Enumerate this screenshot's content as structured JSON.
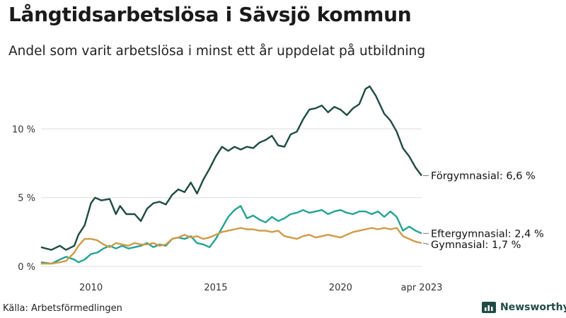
{
  "header": {
    "title": "Långtidsarbetslösa i Sävsjö kommun",
    "subtitle": "Andel som varit arbetslösa i minst ett år uppdelat på utbildning"
  },
  "footer": {
    "source": "Källa: Arbetsförmedlingen",
    "brand": "Newsworthy"
  },
  "colors": {
    "forgymnasial": "#1d4a44",
    "eftergymnasial": "#23a392",
    "gymnasial": "#cf9a45",
    "grid": "#dddddd",
    "brand": "#1f4a45"
  },
  "chart_data": {
    "type": "line",
    "xlim": [
      "2008-01",
      "2023-04"
    ],
    "ylim": [
      0,
      13
    ],
    "y_ticks": [
      0,
      5,
      10
    ],
    "y_tick_labels": [
      "0 %",
      "5 %",
      "10 %"
    ],
    "x_ticks": [
      "2010-01",
      "2015-01",
      "2020-01",
      "2023-04"
    ],
    "x_tick_labels": [
      "2010",
      "2015",
      "2020",
      "apr 2023"
    ],
    "grid": true,
    "legend": "end-labels",
    "series": [
      {
        "name": "Förgymnasial",
        "end_label": "Förgymnasial: 6,6 %",
        "color": "#1d4a44",
        "points": [
          [
            "2008-01",
            1.4
          ],
          [
            "2008-06",
            1.2
          ],
          [
            "2008-10",
            1.5
          ],
          [
            "2009-01",
            1.2
          ],
          [
            "2009-05",
            1.5
          ],
          [
            "2009-07",
            2.3
          ],
          [
            "2009-10",
            3.0
          ],
          [
            "2010-01",
            4.6
          ],
          [
            "2010-03",
            5.0
          ],
          [
            "2010-06",
            4.8
          ],
          [
            "2010-10",
            4.9
          ],
          [
            "2011-01",
            3.8
          ],
          [
            "2011-03",
            4.4
          ],
          [
            "2011-06",
            3.8
          ],
          [
            "2011-10",
            3.8
          ],
          [
            "2012-01",
            3.3
          ],
          [
            "2012-04",
            4.2
          ],
          [
            "2012-07",
            4.6
          ],
          [
            "2012-10",
            4.7
          ],
          [
            "2013-01",
            4.5
          ],
          [
            "2013-04",
            5.2
          ],
          [
            "2013-07",
            5.6
          ],
          [
            "2013-10",
            5.4
          ],
          [
            "2014-01",
            6.1
          ],
          [
            "2014-04",
            5.3
          ],
          [
            "2014-07",
            6.3
          ],
          [
            "2014-10",
            7.1
          ],
          [
            "2015-01",
            8.0
          ],
          [
            "2015-04",
            8.7
          ],
          [
            "2015-07",
            8.4
          ],
          [
            "2015-10",
            8.7
          ],
          [
            "2016-01",
            8.5
          ],
          [
            "2016-04",
            8.7
          ],
          [
            "2016-07",
            8.6
          ],
          [
            "2016-10",
            9.0
          ],
          [
            "2017-01",
            9.2
          ],
          [
            "2017-04",
            9.5
          ],
          [
            "2017-07",
            8.8
          ],
          [
            "2017-10",
            8.7
          ],
          [
            "2018-01",
            9.6
          ],
          [
            "2018-04",
            9.8
          ],
          [
            "2018-07",
            10.7
          ],
          [
            "2018-10",
            11.4
          ],
          [
            "2019-01",
            11.5
          ],
          [
            "2019-04",
            11.7
          ],
          [
            "2019-07",
            11.2
          ],
          [
            "2019-10",
            11.6
          ],
          [
            "2020-01",
            11.4
          ],
          [
            "2020-04",
            11.0
          ],
          [
            "2020-07",
            11.5
          ],
          [
            "2020-10",
            11.8
          ],
          [
            "2021-01",
            12.9
          ],
          [
            "2021-03",
            13.1
          ],
          [
            "2021-06",
            12.4
          ],
          [
            "2021-10",
            11.1
          ],
          [
            "2022-01",
            10.6
          ],
          [
            "2022-04",
            9.8
          ],
          [
            "2022-07",
            8.6
          ],
          [
            "2022-10",
            8.0
          ],
          [
            "2023-01",
            7.2
          ],
          [
            "2023-04",
            6.6
          ]
        ]
      },
      {
        "name": "Eftergymnasial",
        "end_label": "Eftergymnasial: 2,4 %",
        "color": "#23a392",
        "points": [
          [
            "2008-01",
            0.3
          ],
          [
            "2008-06",
            0.2
          ],
          [
            "2008-10",
            0.5
          ],
          [
            "2009-01",
            0.7
          ],
          [
            "2009-05",
            0.5
          ],
          [
            "2009-07",
            0.3
          ],
          [
            "2009-10",
            0.5
          ],
          [
            "2010-01",
            0.9
          ],
          [
            "2010-04",
            1.0
          ],
          [
            "2010-07",
            1.3
          ],
          [
            "2010-10",
            1.5
          ],
          [
            "2011-01",
            1.3
          ],
          [
            "2011-04",
            1.5
          ],
          [
            "2011-07",
            1.3
          ],
          [
            "2011-10",
            1.4
          ],
          [
            "2012-01",
            1.5
          ],
          [
            "2012-04",
            1.7
          ],
          [
            "2012-07",
            1.4
          ],
          [
            "2012-10",
            1.6
          ],
          [
            "2013-01",
            1.5
          ],
          [
            "2013-04",
            2.0
          ],
          [
            "2013-07",
            2.1
          ],
          [
            "2013-10",
            2.0
          ],
          [
            "2014-01",
            2.2
          ],
          [
            "2014-04",
            1.7
          ],
          [
            "2014-07",
            1.6
          ],
          [
            "2014-10",
            1.4
          ],
          [
            "2015-01",
            2.0
          ],
          [
            "2015-04",
            2.8
          ],
          [
            "2015-07",
            3.6
          ],
          [
            "2015-10",
            4.1
          ],
          [
            "2016-01",
            4.4
          ],
          [
            "2016-04",
            3.5
          ],
          [
            "2016-07",
            3.7
          ],
          [
            "2016-10",
            3.4
          ],
          [
            "2017-01",
            3.2
          ],
          [
            "2017-04",
            3.6
          ],
          [
            "2017-07",
            3.3
          ],
          [
            "2017-10",
            3.5
          ],
          [
            "2018-01",
            3.8
          ],
          [
            "2018-04",
            3.9
          ],
          [
            "2018-07",
            4.1
          ],
          [
            "2018-10",
            3.9
          ],
          [
            "2019-01",
            4.0
          ],
          [
            "2019-04",
            4.1
          ],
          [
            "2019-07",
            3.8
          ],
          [
            "2019-10",
            4.0
          ],
          [
            "2020-01",
            4.1
          ],
          [
            "2020-04",
            3.9
          ],
          [
            "2020-07",
            3.8
          ],
          [
            "2020-10",
            4.0
          ],
          [
            "2021-01",
            4.0
          ],
          [
            "2021-04",
            3.8
          ],
          [
            "2021-07",
            4.0
          ],
          [
            "2021-10",
            3.6
          ],
          [
            "2022-01",
            4.0
          ],
          [
            "2022-04",
            3.6
          ],
          [
            "2022-07",
            2.6
          ],
          [
            "2022-10",
            2.9
          ],
          [
            "2023-01",
            2.6
          ],
          [
            "2023-04",
            2.4
          ]
        ]
      },
      {
        "name": "Gymnasial",
        "end_label": "Gymnasial: 1,7 %",
        "color": "#cf9a45",
        "points": [
          [
            "2008-01",
            0.2
          ],
          [
            "2008-06",
            0.2
          ],
          [
            "2008-10",
            0.3
          ],
          [
            "2009-01",
            0.4
          ],
          [
            "2009-05",
            1.0
          ],
          [
            "2009-07",
            1.5
          ],
          [
            "2009-10",
            2.0
          ],
          [
            "2010-01",
            2.0
          ],
          [
            "2010-04",
            1.9
          ],
          [
            "2010-07",
            1.6
          ],
          [
            "2010-10",
            1.4
          ],
          [
            "2011-01",
            1.7
          ],
          [
            "2011-04",
            1.6
          ],
          [
            "2011-07",
            1.5
          ],
          [
            "2011-10",
            1.7
          ],
          [
            "2012-01",
            1.6
          ],
          [
            "2012-04",
            1.6
          ],
          [
            "2012-07",
            1.7
          ],
          [
            "2012-10",
            1.5
          ],
          [
            "2013-01",
            1.6
          ],
          [
            "2013-04",
            2.0
          ],
          [
            "2013-07",
            2.1
          ],
          [
            "2013-10",
            2.3
          ],
          [
            "2014-01",
            2.1
          ],
          [
            "2014-04",
            2.2
          ],
          [
            "2014-07",
            2.0
          ],
          [
            "2014-10",
            2.1
          ],
          [
            "2015-01",
            2.3
          ],
          [
            "2015-04",
            2.5
          ],
          [
            "2015-07",
            2.6
          ],
          [
            "2015-10",
            2.7
          ],
          [
            "2016-01",
            2.8
          ],
          [
            "2016-04",
            2.7
          ],
          [
            "2016-07",
            2.7
          ],
          [
            "2016-10",
            2.6
          ],
          [
            "2017-01",
            2.6
          ],
          [
            "2017-04",
            2.5
          ],
          [
            "2017-07",
            2.6
          ],
          [
            "2017-10",
            2.2
          ],
          [
            "2018-01",
            2.1
          ],
          [
            "2018-04",
            2.0
          ],
          [
            "2018-07",
            2.2
          ],
          [
            "2018-10",
            2.3
          ],
          [
            "2019-01",
            2.1
          ],
          [
            "2019-04",
            2.2
          ],
          [
            "2019-07",
            2.3
          ],
          [
            "2019-10",
            2.2
          ],
          [
            "2020-01",
            2.1
          ],
          [
            "2020-04",
            2.3
          ],
          [
            "2020-07",
            2.5
          ],
          [
            "2020-10",
            2.6
          ],
          [
            "2021-01",
            2.7
          ],
          [
            "2021-04",
            2.8
          ],
          [
            "2021-07",
            2.7
          ],
          [
            "2021-10",
            2.8
          ],
          [
            "2022-01",
            2.7
          ],
          [
            "2022-04",
            2.8
          ],
          [
            "2022-07",
            2.2
          ],
          [
            "2022-10",
            2.0
          ],
          [
            "2023-01",
            1.8
          ],
          [
            "2023-04",
            1.7
          ]
        ]
      }
    ]
  }
}
